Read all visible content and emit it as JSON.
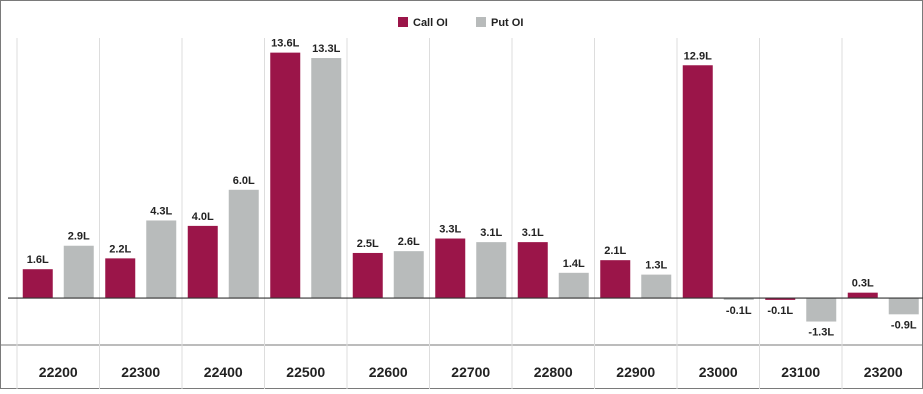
{
  "chart_data": {
    "type": "bar",
    "title": "",
    "xlabel": "",
    "ylabel": "",
    "categories": [
      "22200",
      "22300",
      "22400",
      "22500",
      "22600",
      "22700",
      "22800",
      "22900",
      "23000",
      "23100",
      "23200"
    ],
    "series": [
      {
        "name": "Call OI",
        "color": "#9b1549",
        "values": [
          1.6,
          2.2,
          4.0,
          13.6,
          2.5,
          3.3,
          3.1,
          2.1,
          12.9,
          -0.1,
          0.3
        ],
        "labels": [
          "1.6L",
          "2.2L",
          "4.0L",
          "13.6L",
          "2.5L",
          "3.3L",
          "3.1L",
          "2.1L",
          "12.9L",
          "-0.1L",
          "0.3L"
        ]
      },
      {
        "name": "Put OI",
        "color": "#b8bbbb",
        "values": [
          2.9,
          4.3,
          6.0,
          13.3,
          2.6,
          3.1,
          1.4,
          1.3,
          -0.1,
          -1.3,
          -0.9
        ],
        "labels": [
          "2.9L",
          "4.3L",
          "6.0L",
          "13.3L",
          "2.6L",
          "3.1L",
          "1.4L",
          "1.3L",
          "-0.1L",
          "-1.3L",
          "-0.9L"
        ]
      }
    ],
    "ylim": [
      -2.6,
      14.3
    ],
    "grid": {
      "vertical": true,
      "horizontal": false
    },
    "legend": "top-center"
  }
}
